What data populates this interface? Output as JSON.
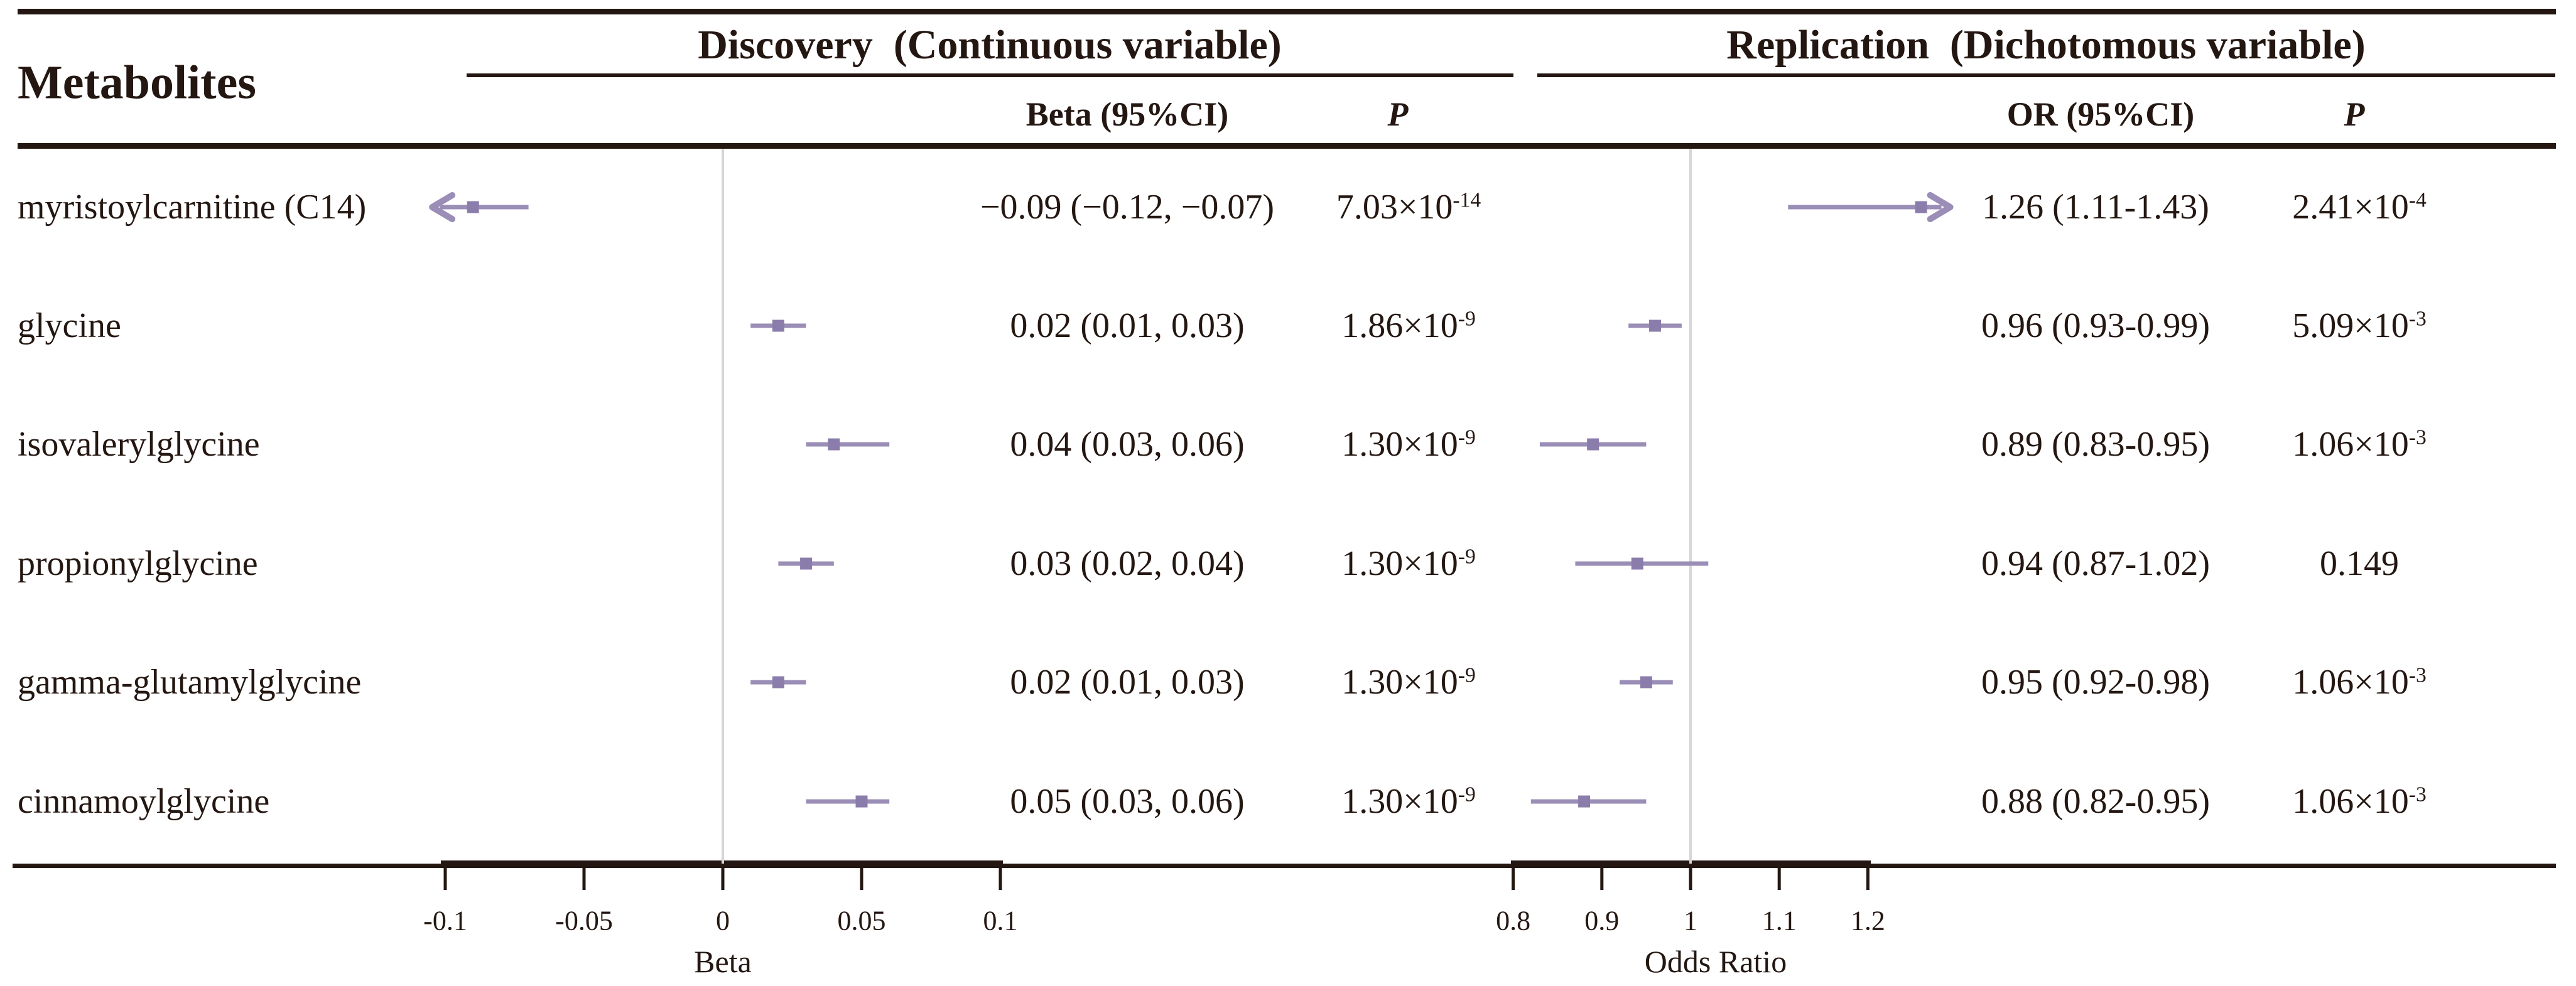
{
  "figure": {
    "left_column_header": "Metabolites",
    "discovery_panel": {
      "title": "Discovery  (Continuous variable)",
      "estimate_header": "Beta (95%CI)",
      "p_header": "P"
    },
    "replication_panel": {
      "title": "Replication  (Dichotomous variable)",
      "estimate_header": "OR (95%CI)",
      "p_header": "P"
    }
  },
  "rows": [
    {
      "name": "myristoylcarnitine (C14)",
      "beta_ci": "−0.09 (−0.12, −0.07)",
      "p_disc": {
        "text": "7.03×10",
        "sup": "-14"
      },
      "or_ci": "1.26 (1.11-1.43)",
      "p_rep": {
        "text": "2.41×10",
        "sup": "-4"
      }
    },
    {
      "name": "glycine",
      "beta_ci": "0.02 (0.01, 0.03)",
      "p_disc": {
        "text": "1.86×10",
        "sup": "-9"
      },
      "or_ci": "0.96 (0.93-0.99)",
      "p_rep": {
        "text": "5.09×10",
        "sup": "-3"
      }
    },
    {
      "name": "isovalerylglycine",
      "beta_ci": "0.04 (0.03, 0.06)",
      "p_disc": {
        "text": "1.30×10",
        "sup": "-9"
      },
      "or_ci": "0.89 (0.83-0.95)",
      "p_rep": {
        "text": "1.06×10",
        "sup": "-3"
      }
    },
    {
      "name": "propionylglycine",
      "beta_ci": "0.03 (0.02, 0.04)",
      "p_disc": {
        "text": "1.30×10",
        "sup": "-9"
      },
      "or_ci": "0.94 (0.87-1.02)",
      "p_rep": {
        "text": "0.149",
        "sup": ""
      }
    },
    {
      "name": "gamma-glutamylglycine",
      "beta_ci": "0.02 (0.01, 0.03)",
      "p_disc": {
        "text": "1.30×10",
        "sup": "-9"
      },
      "or_ci": "0.95 (0.92-0.98)",
      "p_rep": {
        "text": "1.06×10",
        "sup": "-3"
      }
    },
    {
      "name": "cinnamoylglycine",
      "beta_ci": "0.05 (0.03, 0.06)",
      "p_disc": {
        "text": "1.30×10",
        "sup": "-9"
      },
      "or_ci": "0.88 (0.82-0.95)",
      "p_rep": {
        "text": "1.06×10",
        "sup": "-3"
      }
    }
  ],
  "chart_data": {
    "type": "forest",
    "title": "",
    "metabolites": [
      "myristoylcarnitine (C14)",
      "glycine",
      "isovalerylglycine",
      "propionylglycine",
      "gamma-glutamylglycine",
      "cinnamoylglycine"
    ],
    "discovery": {
      "xlabel": "Beta",
      "ticks": [
        -0.1,
        -0.05,
        0,
        0.05,
        0.1
      ],
      "tick_labels": [
        "-0.1",
        "-0.05",
        "0",
        "0.05",
        "0.1"
      ],
      "reference_line": 0,
      "display_clip_low": -0.102,
      "series": [
        {
          "beta": -0.09,
          "low": -0.12,
          "high": -0.07,
          "clip_low": true
        },
        {
          "beta": 0.02,
          "low": 0.01,
          "high": 0.03,
          "clip_low": false
        },
        {
          "beta": 0.04,
          "low": 0.03,
          "high": 0.06,
          "clip_low": false
        },
        {
          "beta": 0.03,
          "low": 0.02,
          "high": 0.04,
          "clip_low": false
        },
        {
          "beta": 0.02,
          "low": 0.01,
          "high": 0.03,
          "clip_low": false
        },
        {
          "beta": 0.05,
          "low": 0.03,
          "high": 0.06,
          "clip_low": false
        }
      ],
      "p_values": [
        "7.03e-14",
        "1.86e-9",
        "1.30e-9",
        "1.30e-9",
        "1.30e-9",
        "1.30e-9"
      ]
    },
    "replication": {
      "xlabel": "Odds Ratio",
      "ticks": [
        0.8,
        0.9,
        1,
        1.1,
        1.2
      ],
      "tick_labels": [
        "0.8",
        "0.9",
        "1",
        "1.1",
        "1.2"
      ],
      "reference_line": 1,
      "display_clip_high": 1.283,
      "series": [
        {
          "or": 1.26,
          "low": 1.11,
          "high": 1.43,
          "clip_high": true
        },
        {
          "or": 0.96,
          "low": 0.93,
          "high": 0.99,
          "clip_high": false
        },
        {
          "or": 0.89,
          "low": 0.83,
          "high": 0.95,
          "clip_high": false
        },
        {
          "or": 0.94,
          "low": 0.87,
          "high": 1.02,
          "clip_high": false
        },
        {
          "or": 0.95,
          "low": 0.92,
          "high": 0.98,
          "clip_high": false
        },
        {
          "or": 0.88,
          "low": 0.82,
          "high": 0.95,
          "clip_high": false
        }
      ],
      "p_values": [
        "2.41e-4",
        "5.09e-3",
        "1.06e-3",
        "0.149",
        "1.06e-3",
        "1.06e-3"
      ]
    },
    "colors": {
      "ink": "#241712",
      "ci_line": "#9a8db6",
      "point_marker": "#8b7dab",
      "reference_line_gray": "#d6d6d6"
    }
  }
}
